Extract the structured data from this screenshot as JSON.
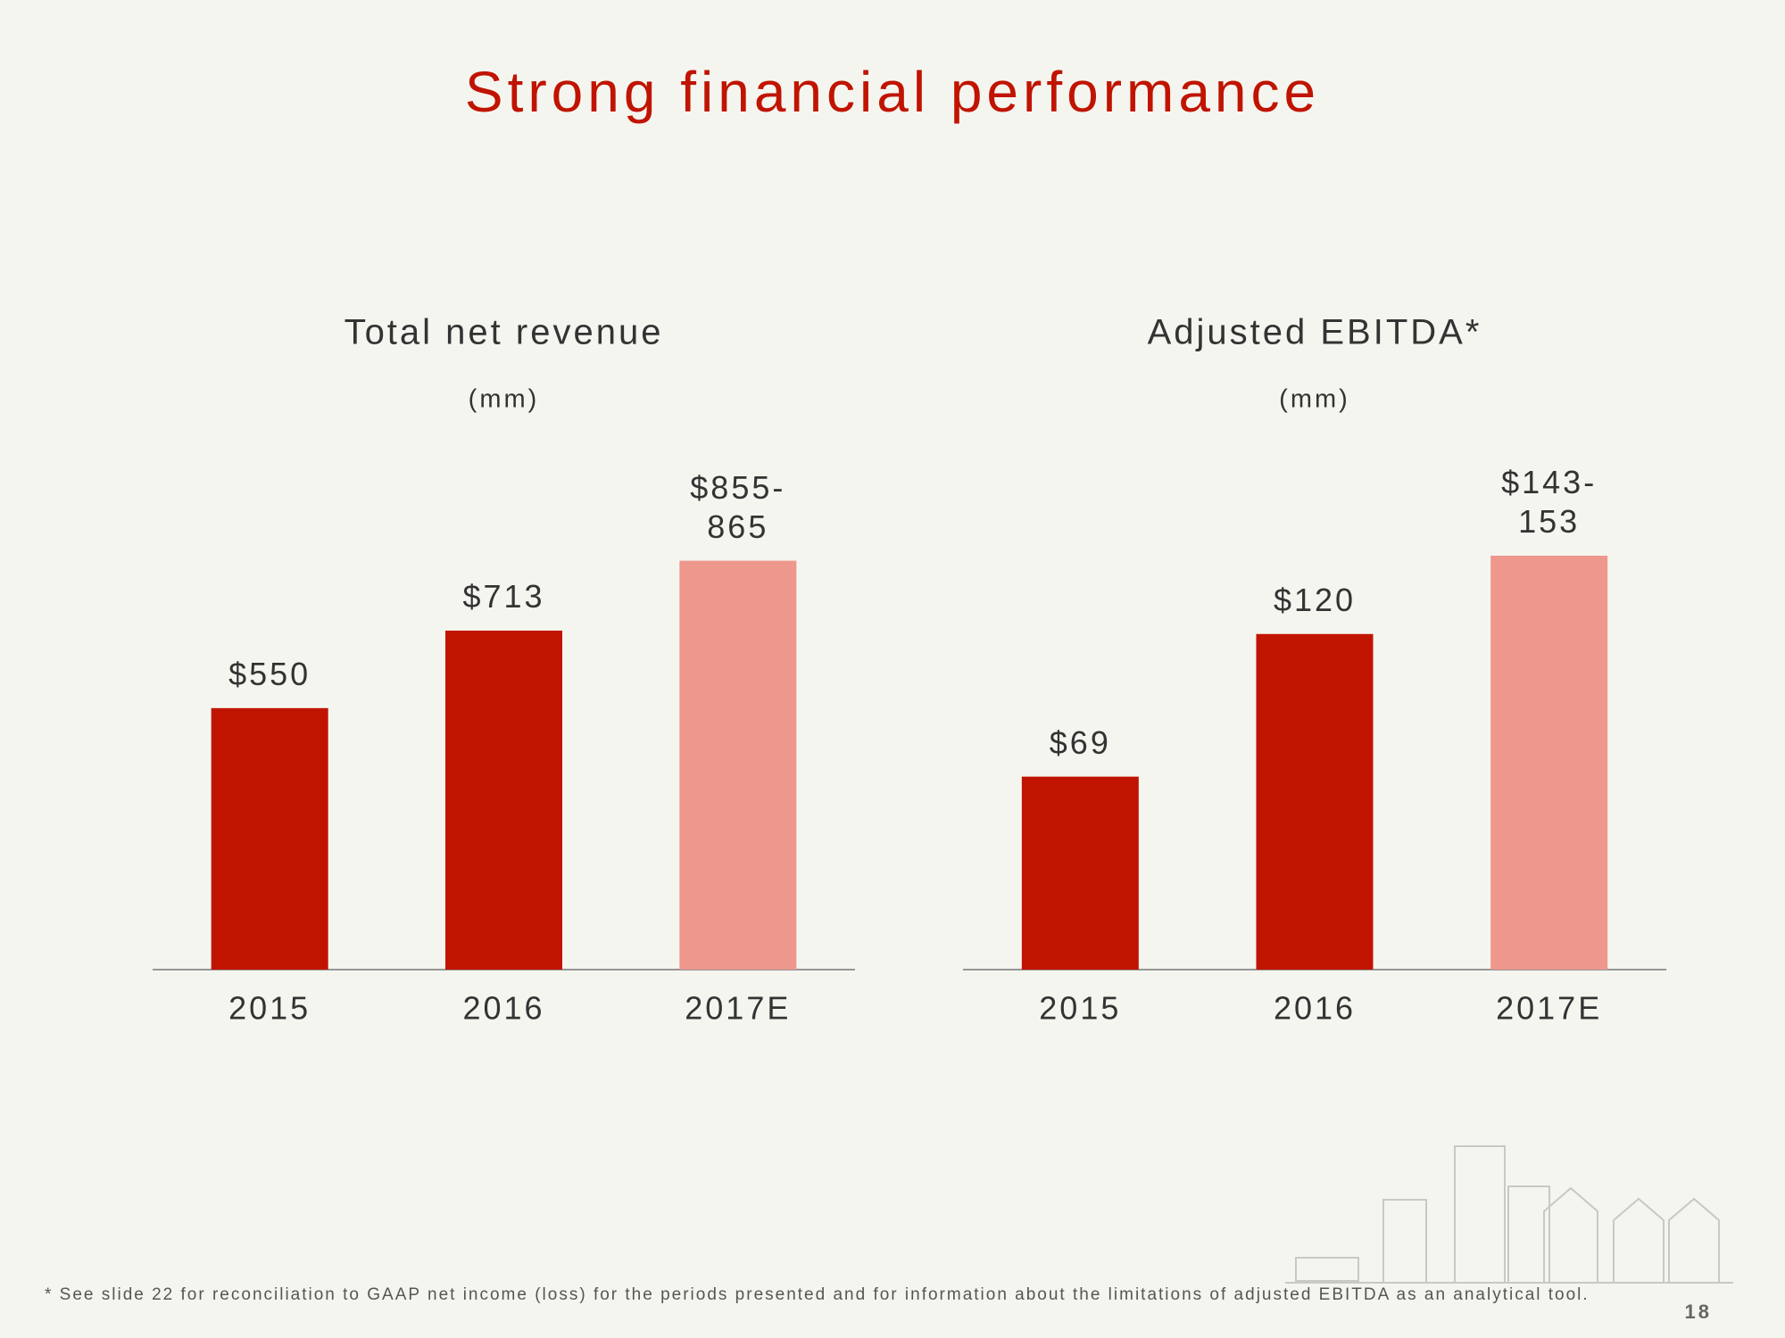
{
  "title": "Strong financial performance",
  "chart_data": [
    {
      "type": "bar",
      "title": "Total net revenue",
      "subtitle": "(mm)",
      "categories": [
        "2015",
        "2016",
        "2017E"
      ],
      "values": [
        550,
        713,
        860
      ],
      "value_labels": [
        "$550",
        "$713",
        "$855-865"
      ],
      "colors": [
        "#c01400",
        "#c01400",
        "#ee978d"
      ],
      "ylim": [
        0,
        1000
      ]
    },
    {
      "type": "bar",
      "title": "Adjusted EBITDA*",
      "subtitle": "(mm)",
      "categories": [
        "2015",
        "2016",
        "2017E"
      ],
      "values": [
        69,
        120,
        148
      ],
      "value_labels": [
        "$69",
        "$120",
        "$143-153"
      ],
      "colors": [
        "#c01400",
        "#c01400",
        "#ee978d"
      ],
      "ylim": [
        0,
        170
      ]
    }
  ],
  "footnote": "* See slide 22 for reconciliation to GAAP net income (loss) for the periods presented and for information about the limitations of adjusted EBITDA as an analytical tool.",
  "page_number": 18
}
